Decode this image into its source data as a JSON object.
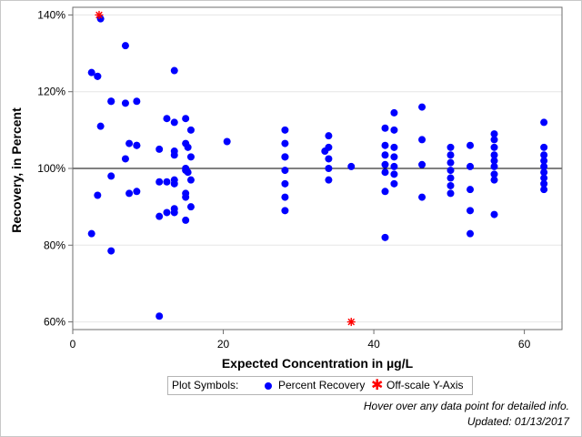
{
  "chart_data": {
    "type": "scatter",
    "title": "",
    "xlabel": "Expected Concentration in µg/L",
    "ylabel": "Recovery, in Percent",
    "xlim": [
      0,
      65
    ],
    "ylim": [
      58,
      142
    ],
    "x_ticks": [
      0,
      20,
      40,
      60
    ],
    "y_ticks": [
      60,
      80,
      100,
      120,
      140
    ],
    "y_tick_labels": [
      "60%",
      "80%",
      "100%",
      "120%",
      "140%"
    ],
    "reference_line_y": 100,
    "grid": "horizontal",
    "series": [
      {
        "name": "Percent Recovery",
        "marker": "circle",
        "color": "#0000ff",
        "points": [
          [
            2.5,
            125
          ],
          [
            2.5,
            83
          ],
          [
            3.3,
            124
          ],
          [
            3.3,
            124
          ],
          [
            3.3,
            93
          ],
          [
            3.7,
            139
          ],
          [
            3.7,
            111
          ],
          [
            5.1,
            117.5
          ],
          [
            5.1,
            117.5
          ],
          [
            5.1,
            98
          ],
          [
            5.1,
            78.5
          ],
          [
            7,
            132
          ],
          [
            7,
            117
          ],
          [
            7,
            102.5
          ],
          [
            7.5,
            106.5
          ],
          [
            7.5,
            93.5
          ],
          [
            8.5,
            117.5
          ],
          [
            8.5,
            106
          ],
          [
            8.5,
            106
          ],
          [
            8.5,
            94
          ],
          [
            11.5,
            105
          ],
          [
            11.5,
            96.5
          ],
          [
            11.5,
            87.5
          ],
          [
            11.5,
            61.5
          ],
          [
            12.5,
            113
          ],
          [
            12.5,
            96.5
          ],
          [
            12.5,
            88.5
          ],
          [
            13.5,
            125.5
          ],
          [
            13.5,
            112
          ],
          [
            13.5,
            104.5
          ],
          [
            13.5,
            103.5
          ],
          [
            13.5,
            97
          ],
          [
            13.5,
            96
          ],
          [
            13.5,
            89.5
          ],
          [
            13.5,
            88.5
          ],
          [
            15,
            113
          ],
          [
            15,
            106.5
          ],
          [
            15,
            100
          ],
          [
            15,
            99.5
          ],
          [
            15,
            93.5
          ],
          [
            15,
            92.5
          ],
          [
            15,
            86.5
          ],
          [
            15.3,
            105.5
          ],
          [
            15.3,
            99
          ],
          [
            15.7,
            110
          ],
          [
            15.7,
            103
          ],
          [
            15.7,
            97
          ],
          [
            15.7,
            90
          ],
          [
            20.5,
            107
          ],
          [
            28.2,
            110
          ],
          [
            28.2,
            106.5
          ],
          [
            28.2,
            103
          ],
          [
            28.2,
            103
          ],
          [
            28.2,
            99.5
          ],
          [
            28.2,
            96
          ],
          [
            28.2,
            92.5
          ],
          [
            28.2,
            89
          ],
          [
            33.5,
            104.5
          ],
          [
            34,
            108.5
          ],
          [
            34,
            105.5
          ],
          [
            34,
            102.5
          ],
          [
            34,
            100
          ],
          [
            34,
            97
          ],
          [
            37,
            100.5
          ],
          [
            41.5,
            110.5
          ],
          [
            41.5,
            106
          ],
          [
            41.5,
            103.5
          ],
          [
            41.5,
            101
          ],
          [
            41.5,
            99
          ],
          [
            41.5,
            94
          ],
          [
            41.5,
            82
          ],
          [
            42.7,
            114.5
          ],
          [
            42.7,
            110
          ],
          [
            42.7,
            105.5
          ],
          [
            42.7,
            103
          ],
          [
            42.7,
            100.5
          ],
          [
            42.7,
            98.5
          ],
          [
            42.7,
            96
          ],
          [
            46.4,
            116
          ],
          [
            46.4,
            107.5
          ],
          [
            46.4,
            101
          ],
          [
            46.4,
            92.5
          ],
          [
            50.2,
            105.5
          ],
          [
            50.2,
            103.5
          ],
          [
            50.2,
            101.5
          ],
          [
            50.2,
            99.5
          ],
          [
            50.2,
            97.5
          ],
          [
            50.2,
            95.5
          ],
          [
            50.2,
            93.5
          ],
          [
            52.8,
            106
          ],
          [
            52.8,
            100.5
          ],
          [
            52.8,
            94.5
          ],
          [
            52.8,
            89
          ],
          [
            52.8,
            83
          ],
          [
            56,
            109
          ],
          [
            56,
            107.5
          ],
          [
            56,
            105.5
          ],
          [
            56,
            103.5
          ],
          [
            56,
            102
          ],
          [
            56,
            100.5
          ],
          [
            56,
            98.5
          ],
          [
            56,
            97
          ],
          [
            56,
            88
          ],
          [
            62.6,
            112
          ],
          [
            62.6,
            105.5
          ],
          [
            62.6,
            103.5
          ],
          [
            62.6,
            102
          ],
          [
            62.6,
            100.5
          ],
          [
            62.6,
            99
          ],
          [
            62.6,
            97.5
          ],
          [
            62.6,
            96
          ],
          [
            62.6,
            94.5
          ]
        ]
      },
      {
        "name": "Off-scale Y-Axis",
        "marker": "star",
        "color": "#ff0000",
        "points": [
          [
            3.5,
            140
          ],
          [
            37,
            60
          ]
        ]
      }
    ]
  },
  "legend": {
    "title": "Plot Symbols:",
    "circle_label": "Percent Recovery",
    "star_label": "Off-scale Y-Axis"
  },
  "notes": {
    "hover": "Hover over any data point for detailed info.",
    "updated": "Updated: 01/13/2017"
  }
}
